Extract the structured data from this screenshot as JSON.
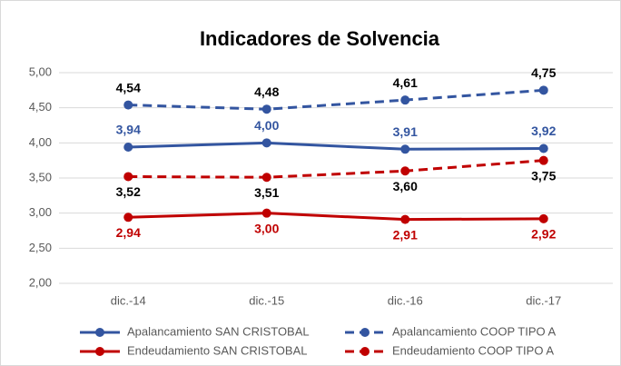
{
  "chart_data": {
    "type": "line",
    "title": "Indicadores de Solvencia",
    "categories": [
      "dic.-14",
      "dic.-15",
      "dic.-16",
      "dic.-17"
    ],
    "series": [
      {
        "name": "Apalancamiento SAN CRISTOBAL",
        "color": "#3355a0",
        "dashed": false,
        "label_color": "#3355a0",
        "values": [
          3.94,
          4.0,
          3.91,
          3.92
        ],
        "value_labels": [
          "3,94",
          "4,00",
          "3,91",
          "3,92"
        ]
      },
      {
        "name": "Apalancamiento COOP TIPO A",
        "color": "#3355a0",
        "dashed": true,
        "label_color": "#000000",
        "values": [
          4.54,
          4.48,
          4.61,
          4.75
        ],
        "value_labels": [
          "4,54",
          "4,48",
          "4,61",
          "4,75"
        ]
      },
      {
        "name": "Endeudamiento SAN CRISTOBAL",
        "color": "#c00000",
        "dashed": false,
        "label_color": "#c00000",
        "values": [
          2.94,
          3.0,
          2.91,
          2.92
        ],
        "value_labels": [
          "2,94",
          "3,00",
          "2,91",
          "2,92"
        ]
      },
      {
        "name": "Endeudamiento COOP TIPO A",
        "color": "#c00000",
        "dashed": true,
        "label_color": "#000000",
        "values": [
          3.52,
          3.51,
          3.6,
          3.75
        ],
        "value_labels": [
          "3,52",
          "3,51",
          "3,60",
          "3,75"
        ]
      }
    ],
    "ylim": [
      2,
      5
    ],
    "yticks": [
      {
        "value": 2,
        "label": "2,00"
      },
      {
        "value": 2.5,
        "label": "2,50"
      },
      {
        "value": 3,
        "label": "3,00"
      },
      {
        "value": 3.5,
        "label": "3,50"
      },
      {
        "value": 4,
        "label": "4,00"
      },
      {
        "value": 4.5,
        "label": "4,50"
      },
      {
        "value": 5,
        "label": "5,00"
      }
    ],
    "grid": true,
    "legend": "bottom"
  }
}
